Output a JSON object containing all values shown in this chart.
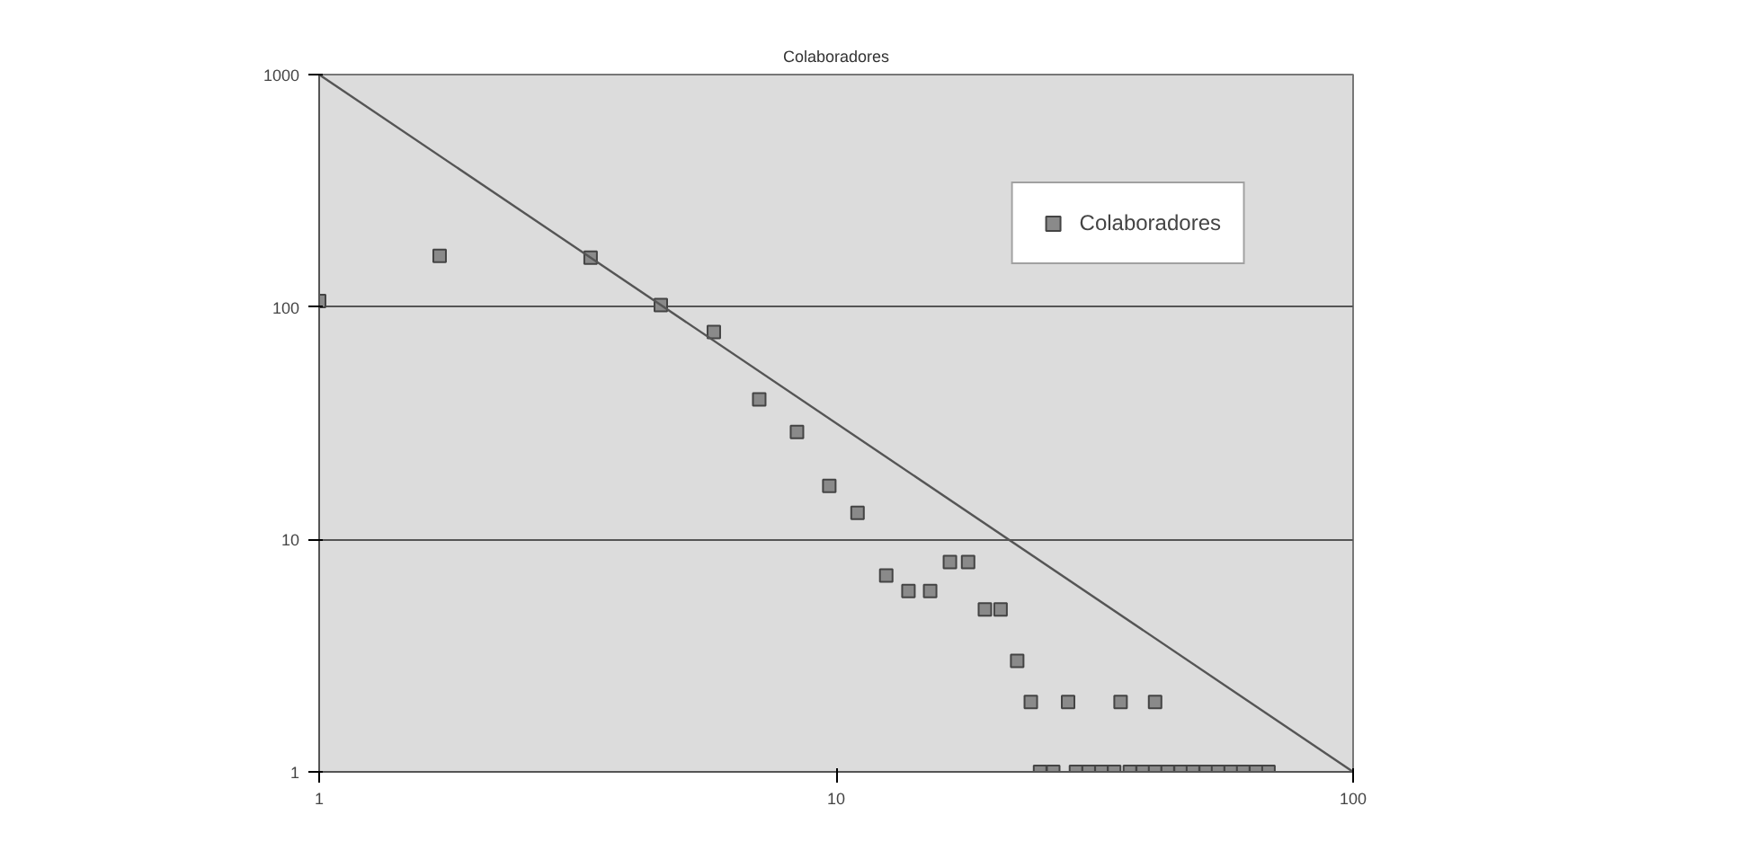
{
  "chart_data": {
    "type": "scatter",
    "title": "Colaboradores",
    "log": "xy",
    "grid": "y",
    "legend": "top right",
    "xlim": [
      1,
      100
    ],
    "ylim": [
      1,
      1000
    ],
    "xticks": [
      1,
      10,
      100
    ],
    "yticks": [
      1,
      10,
      100,
      1000
    ],
    "series": [
      {
        "name": "Colaboradores",
        "color": "#8a8a8a",
        "marker": "square",
        "x": [
          1,
          1.71,
          3.35,
          4.58,
          5.8,
          7.1,
          8.4,
          9.7,
          11.0,
          12.5,
          13.8,
          15.2,
          16.6,
          18.0,
          19.4,
          20.8,
          22.4,
          23.8,
          28.1,
          35.5,
          41.4,
          24.8,
          26.3,
          29.1,
          30.8,
          32.6,
          34.5,
          37.0,
          39.2,
          41.4,
          43.8,
          46.4,
          49.0,
          51.9,
          54.8,
          58.0,
          61.3,
          64.9,
          68.6
        ],
        "values": [
          106,
          166,
          163,
          102,
          78,
          40,
          29,
          17,
          13,
          7,
          6,
          6,
          8,
          8,
          5,
          5,
          3,
          2,
          2,
          2,
          2,
          1,
          1,
          1,
          1,
          1,
          1,
          1,
          1,
          1,
          1,
          1,
          1,
          1,
          1,
          1,
          1,
          1,
          1
        ]
      },
      {
        "color": "#555555",
        "type": "line",
        "x": [
          1,
          100
        ],
        "values": [
          1000,
          1
        ]
      }
    ]
  }
}
